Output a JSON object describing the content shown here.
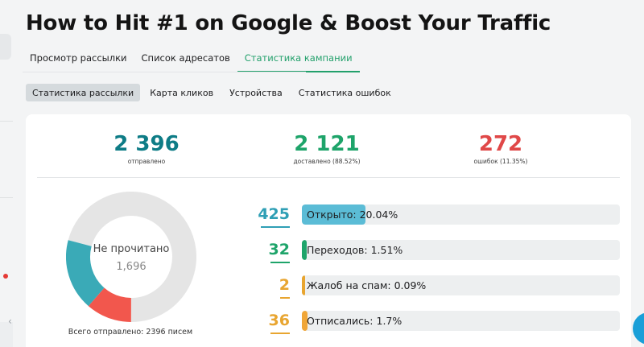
{
  "title": "How to Hit #1 on Google & Boost Your Traffic",
  "tabs": [
    {
      "label": "Просмотр рассылки"
    },
    {
      "label": "Список адресатов"
    },
    {
      "label": "Статистика кампании"
    }
  ],
  "subtabs": [
    {
      "label": "Статистика рассылки"
    },
    {
      "label": "Карта кликов"
    },
    {
      "label": "Устройства"
    },
    {
      "label": "Статистика ошибок"
    }
  ],
  "summary": {
    "sent": {
      "value": "2 396",
      "label": "отправлено"
    },
    "delivered": {
      "value": "2 121",
      "label": "доставлено (88.52%)"
    },
    "errors": {
      "value": "272",
      "label": "ошибок (11.35%)"
    }
  },
  "donut": {
    "title": "Не прочитано",
    "value": "1,696",
    "total_label": "Всего отправлено: 2396 писем",
    "segments": [
      {
        "name": "opened",
        "value": 425,
        "color": "#3aaab7"
      },
      {
        "name": "errors",
        "value": 272,
        "color": "#f2574d"
      },
      {
        "name": "unread",
        "value": 1696,
        "color": "#e5e5e5"
      }
    ]
  },
  "metrics": [
    {
      "value": "425",
      "label": "Открыто: 20.04%",
      "fraction": 0.2004,
      "color": "#5bbcd6"
    },
    {
      "value": "32",
      "label": "Переходов: 1.51%",
      "fraction": 0.0151,
      "color": "#1ea46a"
    },
    {
      "value": "2",
      "label": "Жалоб на спам: 0.09%",
      "fraction": 0.0009,
      "color": "#e8a530"
    },
    {
      "value": "36",
      "label": "Отписались: 1.7%",
      "fraction": 0.017,
      "color": "#f0a638"
    }
  ],
  "icons": {
    "rail_toggle": "chevron-left-icon",
    "fab": "chat-icon"
  }
}
